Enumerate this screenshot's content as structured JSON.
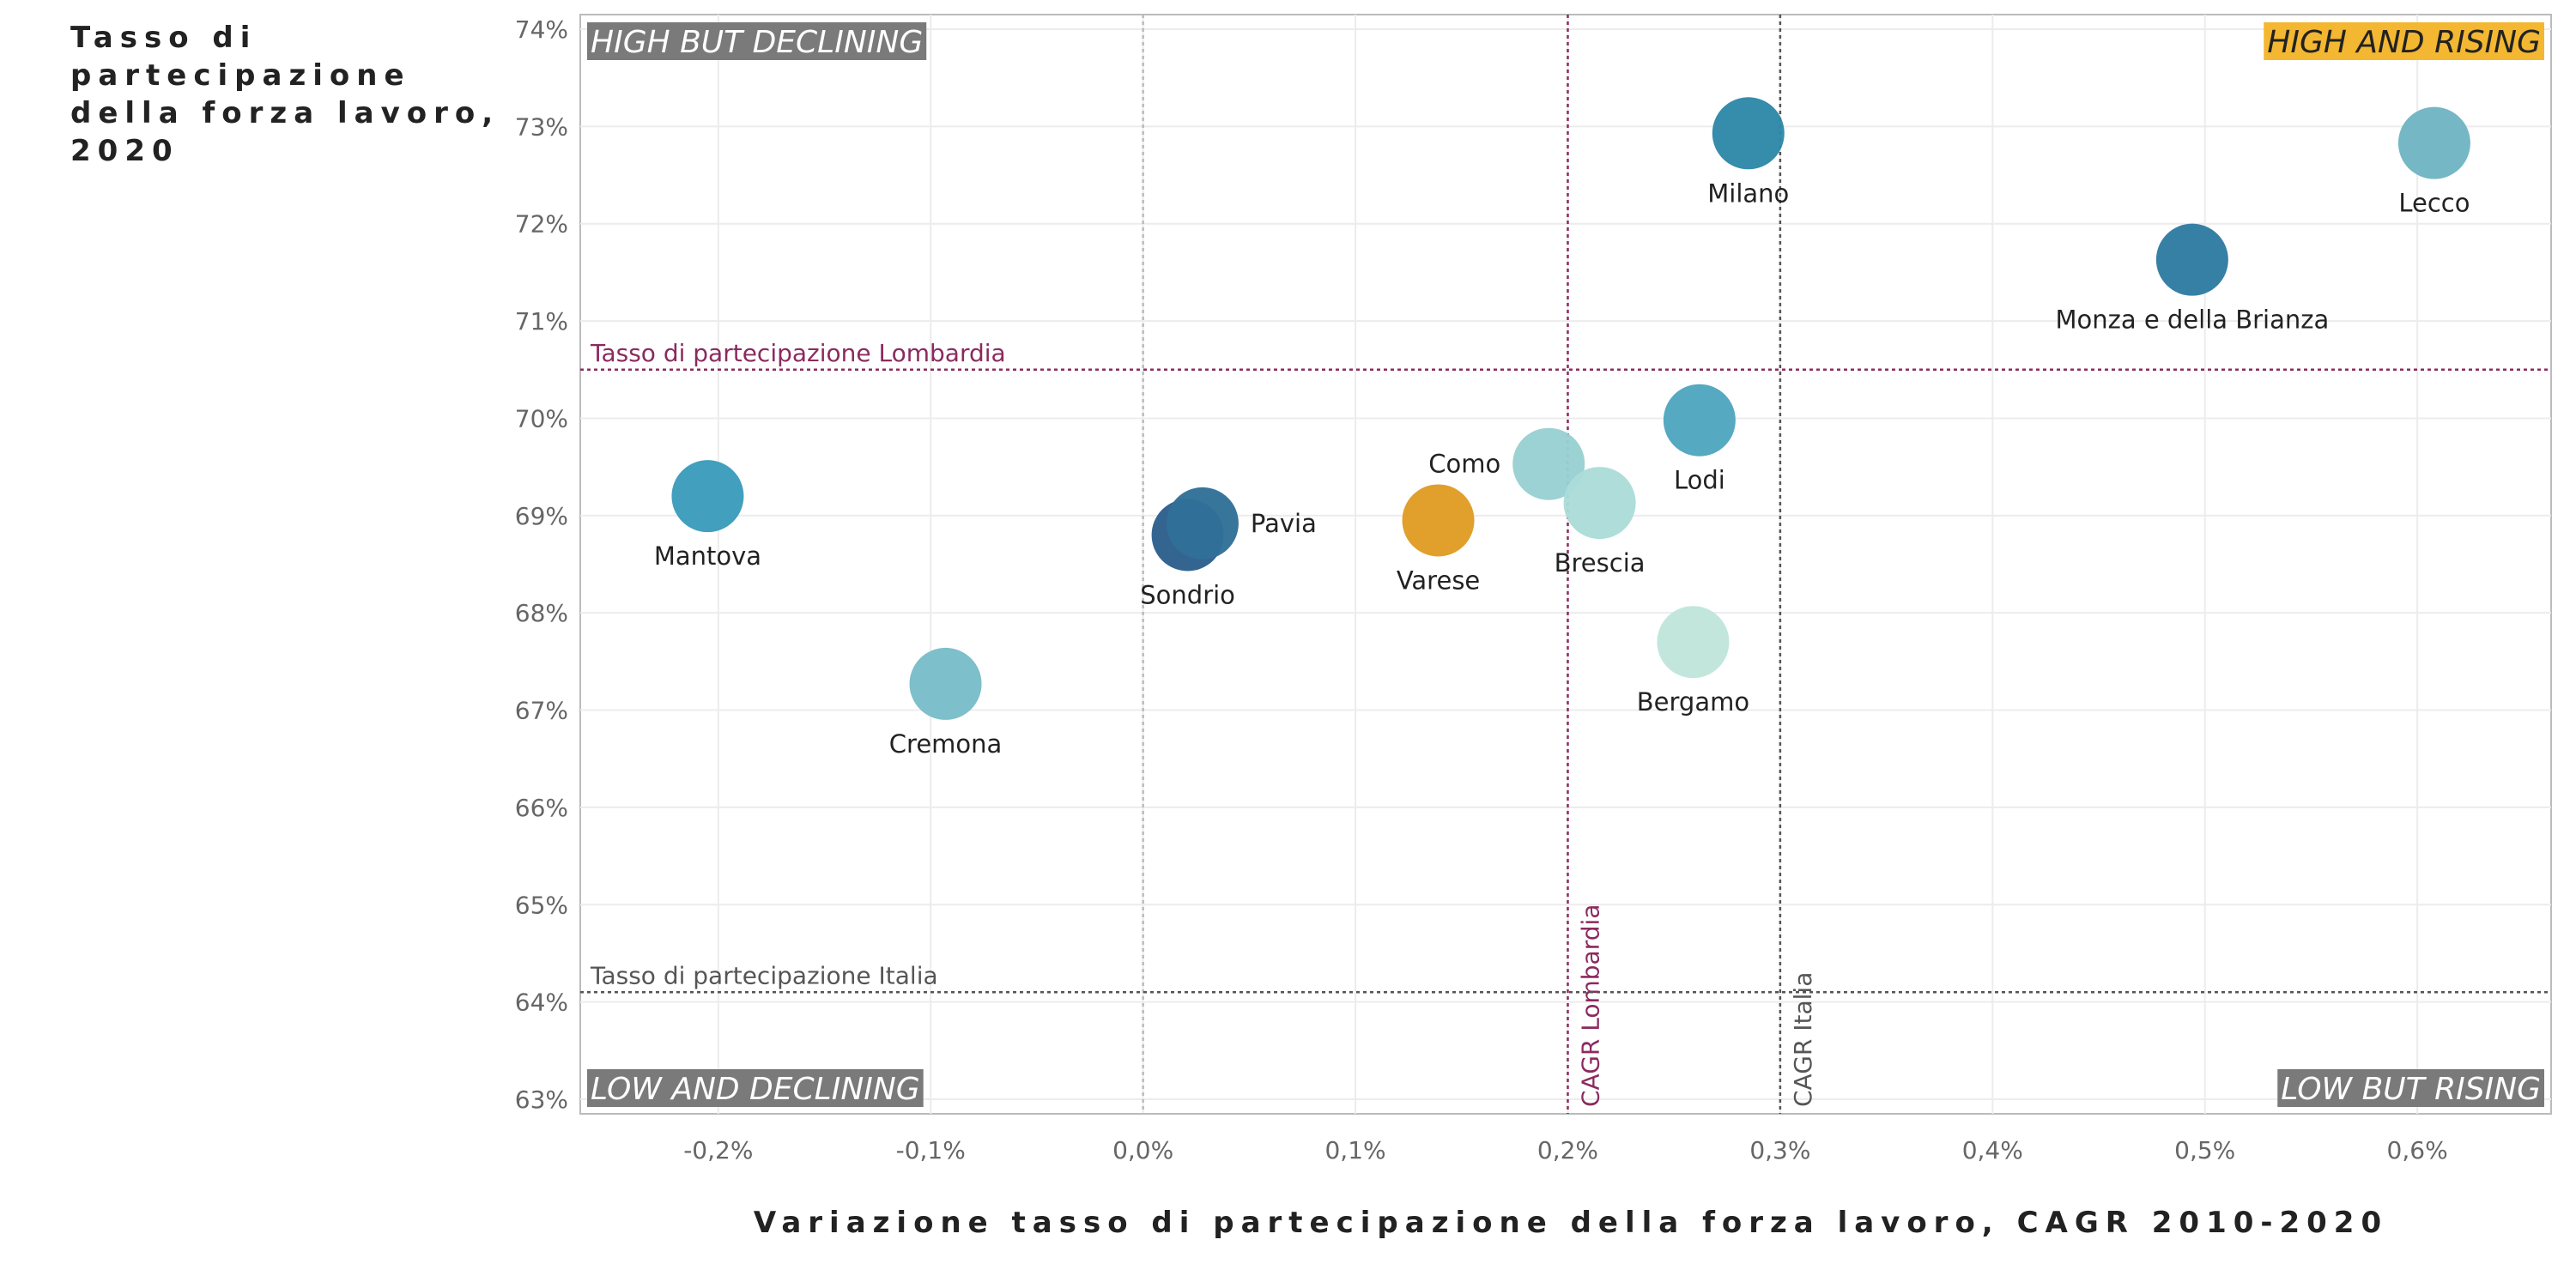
{
  "chart_data": {
    "type": "scatter",
    "ylabel": "Tasso di partecipazione della forza lavoro, 2020",
    "xlabel": "Variazione tasso di partecipazione della forza lavoro, CAGR 2010-2020",
    "xlim": [
      -0.265,
      0.663
    ],
    "ylim": [
      62.85,
      74.15
    ],
    "xticks": [
      -0.2,
      -0.1,
      0.0,
      0.1,
      0.2,
      0.3,
      0.4,
      0.5,
      0.6
    ],
    "xtick_labels": [
      "-0,2%",
      "-0,1%",
      "0,0%",
      "0,1%",
      "0,2%",
      "0,3%",
      "0,4%",
      "0,5%",
      "0,6%"
    ],
    "yticks": [
      63,
      64,
      65,
      66,
      67,
      68,
      69,
      70,
      71,
      72,
      73,
      74
    ],
    "ytick_labels": [
      "63%",
      "64%",
      "65%",
      "66%",
      "67%",
      "68%",
      "69%",
      "70%",
      "71%",
      "72%",
      "73%",
      "74%"
    ],
    "grid": true,
    "points": [
      {
        "name": "Mantova",
        "x": -0.205,
        "y": 69.2,
        "color": "#3a9bba",
        "label_pos": "below"
      },
      {
        "name": "Cremona",
        "x": -0.093,
        "y": 67.27,
        "color": "#78bcc8",
        "label_pos": "below"
      },
      {
        "name": "Sondrio",
        "x": 0.021,
        "y": 68.8,
        "color": "#2c5f8d",
        "label_pos": "below"
      },
      {
        "name": "Pavia",
        "x": 0.028,
        "y": 68.92,
        "color": "#306f97",
        "label_pos": "right"
      },
      {
        "name": "Varese",
        "x": 0.139,
        "y": 68.95,
        "color": "#e09b22",
        "label_pos": "below"
      },
      {
        "name": "Como",
        "x": 0.191,
        "y": 69.53,
        "color": "#98d0d1",
        "label_pos": "left"
      },
      {
        "name": "Brescia",
        "x": 0.215,
        "y": 69.13,
        "color": "#acdcd8",
        "label_pos": "below"
      },
      {
        "name": "Lodi",
        "x": 0.262,
        "y": 69.98,
        "color": "#4ea6be",
        "label_pos": "below"
      },
      {
        "name": "Bergamo",
        "x": 0.259,
        "y": 67.7,
        "color": "#bfe5da",
        "label_pos": "below"
      },
      {
        "name": "Milano",
        "x": 0.285,
        "y": 72.93,
        "color": "#2e87a8",
        "label_pos": "below"
      },
      {
        "name": "Monza e della Brianza",
        "x": 0.494,
        "y": 71.63,
        "color": "#2f7ba1",
        "label_pos": "below"
      },
      {
        "name": "Lecco",
        "x": 0.608,
        "y": 72.83,
        "color": "#6fb4c3",
        "label_pos": "below"
      }
    ],
    "reference_lines": {
      "horizontal": [
        {
          "label": "Tasso di partecipazione Lombardia",
          "y": 70.5,
          "color": "#8b2a5e"
        },
        {
          "label": "Tasso di partecipazione Italia",
          "y": 64.1,
          "color": "#555555"
        }
      ],
      "vertical": [
        {
          "label": "CAGR Lombardia",
          "x": 0.2,
          "color": "#8b2a5e"
        },
        {
          "label": "CAGR Italia",
          "x": 0.3,
          "color": "#555555"
        },
        {
          "label": "",
          "x": 0.0,
          "color": "#bbbbbb"
        }
      ]
    },
    "quadrants": [
      {
        "label": "HIGH BUT DECLINING",
        "position": "top-left",
        "bg": "#7a7a7a",
        "fg": "#ffffff"
      },
      {
        "label": "HIGH AND RISING",
        "position": "top-right",
        "bg": "#f3b731",
        "fg": "#222222"
      },
      {
        "label": "LOW AND DECLINING",
        "position": "bottom-left",
        "bg": "#7a7a7a",
        "fg": "#ffffff"
      },
      {
        "label": "LOW BUT RISING",
        "position": "bottom-right",
        "bg": "#7a7a7a",
        "fg": "#ffffff"
      }
    ]
  }
}
